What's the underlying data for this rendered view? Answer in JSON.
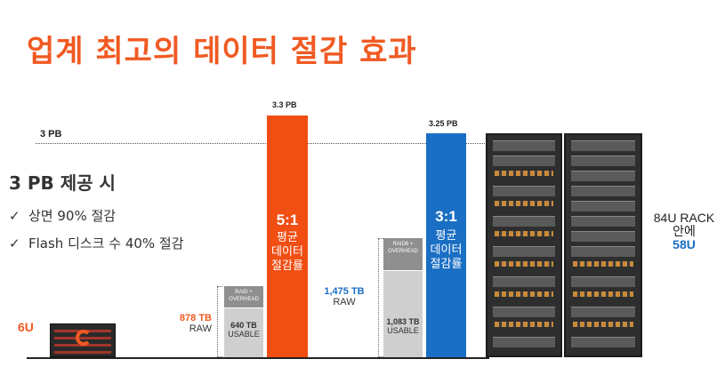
{
  "slide": {
    "title": "업계 최고의 데이터 절감 효과",
    "reference_line_label": "3 PB",
    "headline": "3 PB 제공 시",
    "bullets": [
      "상면 90% 절감",
      "Flash 디스크 수 40% 절감"
    ],
    "bullet_icon": "checkmark-icon",
    "accent_orange": "#f05a22",
    "accent_blue": "#1a6fc4"
  },
  "left_system": {
    "height_label": "6U",
    "raw_value": "878 TB",
    "raw_label": "RAW",
    "overhead_label": "RAID + OVERHEAD",
    "usable_value": "640 TB",
    "usable_label": "USABLE",
    "effective_value": "3.3 PB",
    "ratio": "5:1",
    "ratio_desc": "평균 데이터 절감률"
  },
  "right_system": {
    "raw_value": "1,475 TB",
    "raw_label": "RAW",
    "overhead_label": "RAID6 + OVERHEAD",
    "usable_value": "1,083 TB",
    "usable_label": "USABLE",
    "effective_value": "3.25 PB",
    "ratio": "3:1",
    "ratio_desc": "평균 데이터 절감률",
    "rack_label": "84U RACK",
    "rack_suffix": "안에",
    "rack_usage": "58U"
  }
}
